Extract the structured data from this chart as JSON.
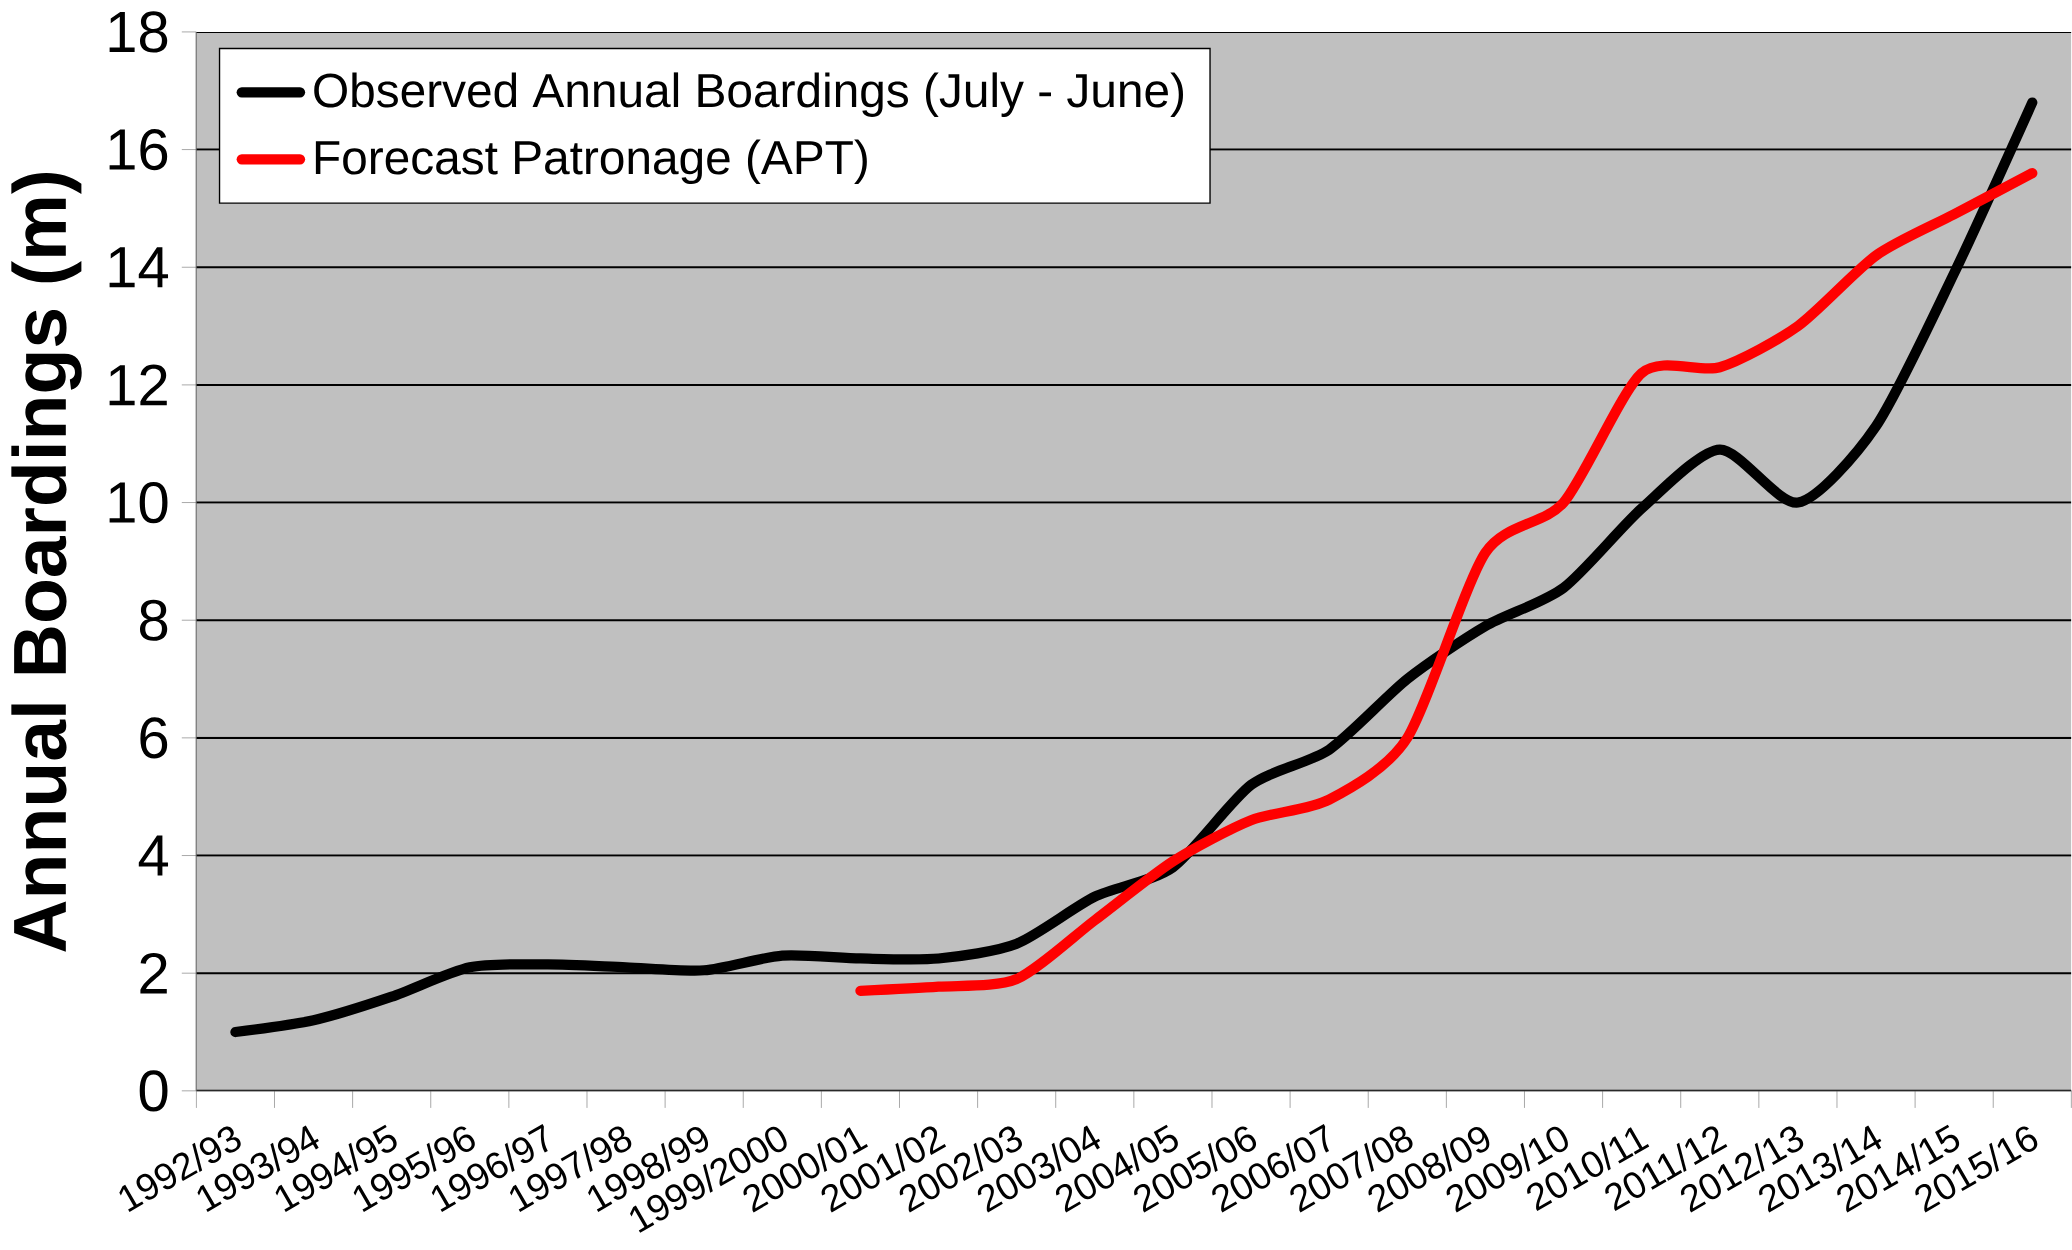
{
  "chart_data": {
    "type": "line",
    "ylabel": "Annual Boardings (m)",
    "categories": [
      "1992/93",
      "1993/94",
      "1994/95",
      "1995/96",
      "1996/97",
      "1997/98",
      "1998/99",
      "1999/2000",
      "2000/01",
      "2001/02",
      "2002/03",
      "2003/04",
      "2004/05",
      "2005/06",
      "2006/07",
      "2007/08",
      "2008/09",
      "2009/10",
      "2010/11",
      "2011/12",
      "2012/13",
      "2013/14",
      "2014/15",
      "2015/16"
    ],
    "series": [
      {
        "name": "Observed Annual Boardings (July - June)",
        "color": "#000000",
        "values": [
          1.0,
          1.2,
          1.6,
          2.1,
          2.15,
          2.1,
          2.05,
          2.3,
          2.25,
          2.25,
          2.5,
          3.3,
          3.8,
          5.2,
          5.8,
          7.0,
          7.9,
          8.55,
          9.9,
          10.9,
          10.0,
          11.3,
          13.9,
          16.8
        ]
      },
      {
        "name": "Forecast Patronage (APT)",
        "color": "#ff0000",
        "values": [
          null,
          null,
          null,
          null,
          null,
          null,
          null,
          null,
          1.7,
          1.77,
          1.9,
          2.9,
          3.9,
          4.6,
          4.95,
          6.0,
          9.15,
          10.0,
          12.2,
          12.3,
          13.0,
          14.2,
          14.9,
          15.6
        ]
      }
    ],
    "ylim": [
      0,
      18
    ],
    "yticks": [
      0,
      2,
      4,
      6,
      8,
      10,
      12,
      14,
      16,
      18
    ],
    "grid": "y",
    "legend": "top left"
  }
}
